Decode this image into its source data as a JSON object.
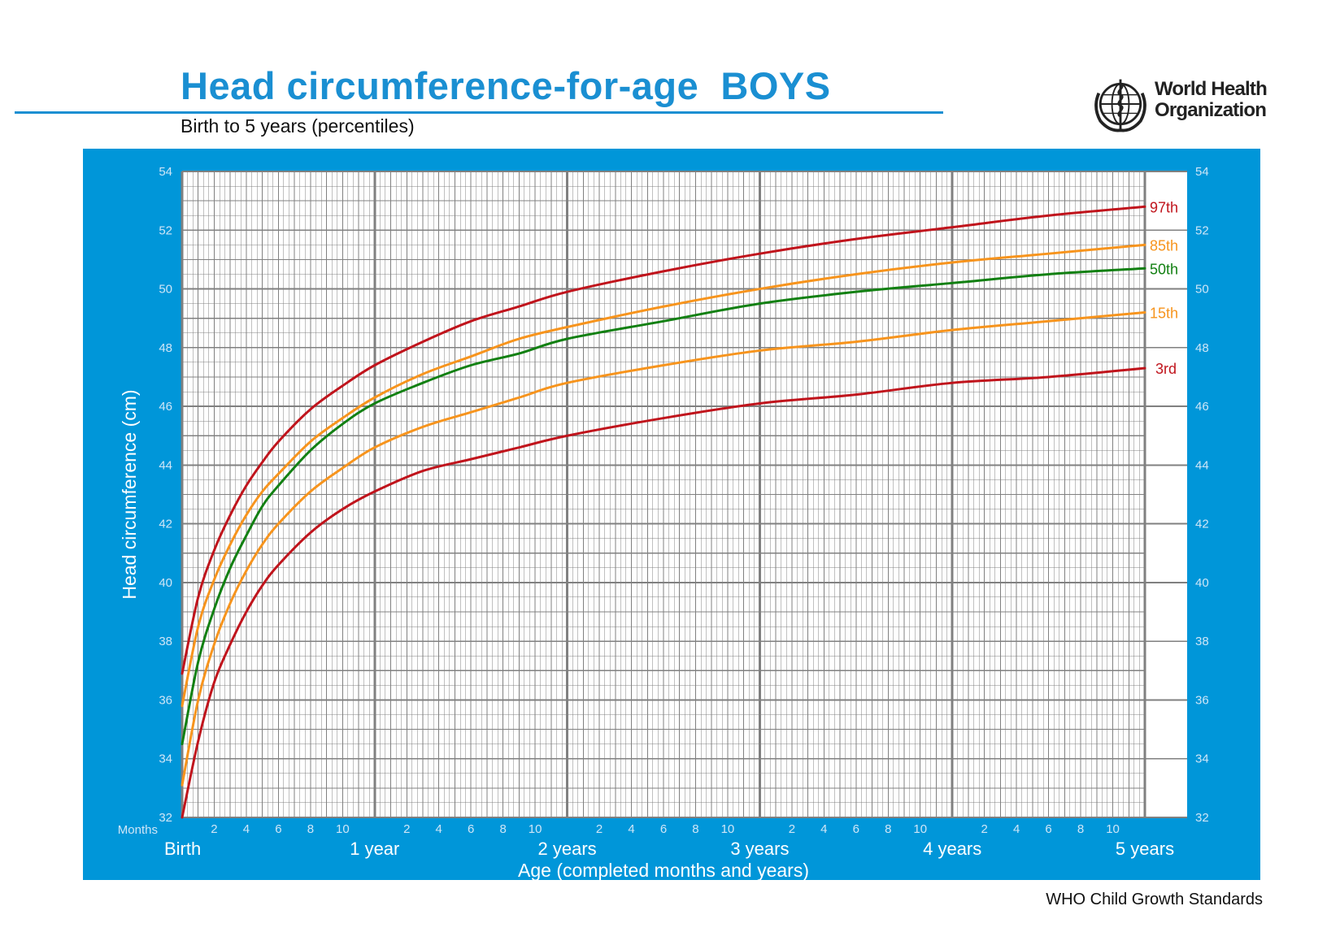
{
  "header": {
    "title": "Head circumference-for-age  BOYS",
    "subtitle": "Birth to 5 years (percentiles)",
    "organization_line1": "World Health",
    "organization_line2": "Organization",
    "logo_icon": "who-emblem-icon"
  },
  "footer": {
    "text": "WHO Child Growth Standards"
  },
  "colors": {
    "panel": "#0096d9",
    "title": "#1a8fd2",
    "grid_background": "#ffffff",
    "grid_line": "#808080",
    "p3_p97": "#c0141c",
    "p15_p85": "#f7941d",
    "p50": "#128012"
  },
  "chart_data": {
    "type": "line",
    "title": "Head circumference-for-age  BOYS",
    "subtitle": "Birth to 5 years (percentiles)",
    "xlabel": "Age (completed months and years)",
    "ylabel": "Head circumference (cm)",
    "xlim": [
      0,
      60
    ],
    "ylim": [
      32,
      54
    ],
    "y_ticks": [
      32,
      34,
      36,
      38,
      40,
      42,
      44,
      46,
      48,
      50,
      52,
      54
    ],
    "month_axis_label": "Months",
    "month_ticks": [
      2,
      4,
      6,
      8,
      10
    ],
    "year_labels": [
      "Birth",
      "1 year",
      "2 years",
      "3 years",
      "4 years",
      "5 years"
    ],
    "grid": true,
    "legend": "right-end labels",
    "series": [
      {
        "name": "97th",
        "color": "#c0141c",
        "x": [
          0,
          1,
          2,
          3,
          4,
          5,
          6,
          8,
          10,
          12,
          15,
          18,
          21,
          24,
          30,
          36,
          42,
          48,
          54,
          60
        ],
        "y": [
          36.9,
          39.5,
          41.1,
          42.3,
          43.3,
          44.1,
          44.8,
          45.9,
          46.7,
          47.4,
          48.2,
          48.9,
          49.4,
          49.9,
          50.6,
          51.2,
          51.7,
          52.1,
          52.5,
          52.8
        ]
      },
      {
        "name": "85th",
        "color": "#f7941d",
        "x": [
          0,
          1,
          2,
          3,
          4,
          5,
          6,
          8,
          10,
          12,
          15,
          18,
          21,
          24,
          30,
          36,
          42,
          48,
          54,
          60
        ],
        "y": [
          35.8,
          38.5,
          40.1,
          41.3,
          42.3,
          43.1,
          43.7,
          44.8,
          45.6,
          46.3,
          47.1,
          47.7,
          48.3,
          48.7,
          49.4,
          50.0,
          50.5,
          50.9,
          51.2,
          51.5
        ]
      },
      {
        "name": "50th",
        "color": "#128012",
        "x": [
          0,
          1,
          2,
          3,
          4,
          5,
          6,
          8,
          10,
          12,
          15,
          18,
          21,
          24,
          30,
          36,
          42,
          48,
          54,
          60
        ],
        "y": [
          34.5,
          37.3,
          39.1,
          40.5,
          41.6,
          42.6,
          43.3,
          44.5,
          45.4,
          46.1,
          46.8,
          47.4,
          47.8,
          48.3,
          48.9,
          49.5,
          49.9,
          50.2,
          50.5,
          50.7
        ]
      },
      {
        "name": "15th",
        "color": "#f7941d",
        "x": [
          0,
          1,
          2,
          3,
          4,
          5,
          6,
          8,
          10,
          12,
          15,
          18,
          21,
          24,
          30,
          36,
          42,
          48,
          54,
          60
        ],
        "y": [
          33.1,
          36.0,
          37.9,
          39.3,
          40.4,
          41.3,
          42.0,
          43.1,
          43.9,
          44.6,
          45.3,
          45.8,
          46.3,
          46.8,
          47.4,
          47.9,
          48.2,
          48.6,
          48.9,
          49.2
        ]
      },
      {
        "name": "3rd",
        "color": "#c0141c",
        "x": [
          0,
          1,
          2,
          3,
          4,
          5,
          6,
          8,
          10,
          12,
          15,
          18,
          21,
          24,
          30,
          36,
          42,
          48,
          54,
          60
        ],
        "y": [
          32.0,
          34.6,
          36.6,
          37.9,
          39.0,
          39.9,
          40.6,
          41.7,
          42.5,
          43.1,
          43.8,
          44.2,
          44.6,
          45.0,
          45.6,
          46.1,
          46.4,
          46.8,
          47.0,
          47.3
        ]
      }
    ]
  }
}
